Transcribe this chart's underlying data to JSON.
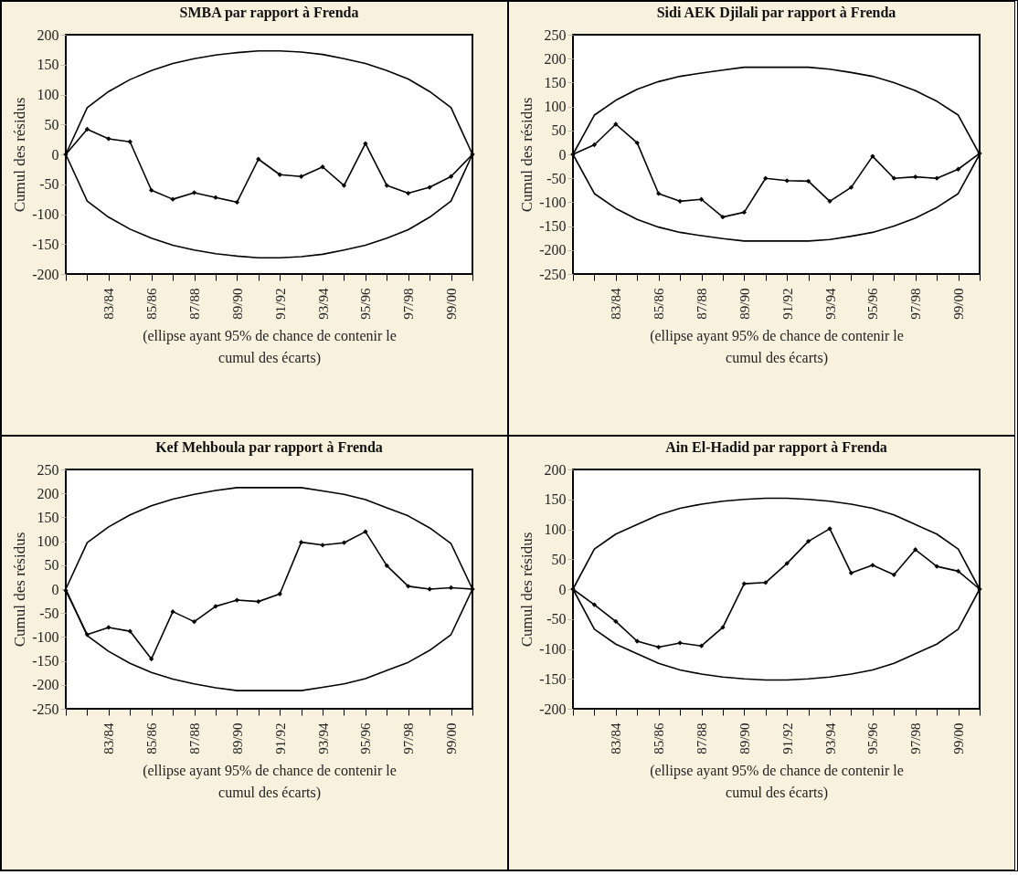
{
  "chart_data": [
    {
      "type": "line",
      "title": "SMBA par rapport à Frenda",
      "ylabel": "Cumul des résidus",
      "xlabel": "(ellipse ayant 95% de chance de contenir le cumul des écarts)",
      "categories": [
        null,
        null,
        "83/84",
        null,
        "85/86",
        null,
        "87/88",
        null,
        "89/90",
        null,
        "91/92",
        null,
        "93/94",
        null,
        "95/96",
        null,
        "97/98",
        null,
        "99/00",
        null
      ],
      "series": [
        {
          "color": "#000000",
          "marker": "diamond",
          "values": [
            0,
            42,
            26,
            21,
            -60,
            -75,
            -64,
            -72,
            -80,
            -8,
            -34,
            -37,
            -21,
            -52,
            18,
            -52,
            -65,
            -55,
            -37,
            0
          ],
          "upper": [
            0,
            78,
            105,
            125,
            140,
            152,
            160,
            166,
            170,
            173,
            173,
            171,
            167,
            160,
            152,
            140,
            126,
            105,
            78,
            0
          ],
          "lower": [
            0,
            -78,
            -105,
            -125,
            -140,
            -152,
            -160,
            -166,
            -170,
            -173,
            -173,
            -171,
            -167,
            -160,
            -152,
            -140,
            -126,
            -105,
            -78,
            0
          ]
        }
      ],
      "ylim": [
        -200,
        200
      ],
      "yticks": [
        -200,
        -150,
        -100,
        -50,
        0,
        50,
        100,
        150,
        200
      ]
    },
    {
      "type": "line",
      "title": "Sidi AEK Djilali par rapport à Frenda",
      "ylabel": "Cumul des résidus",
      "xlabel": "(ellipse ayant 95% de chance de contenir le cumul des écarts)",
      "categories": [
        null,
        null,
        "83/84",
        null,
        "85/86",
        null,
        "87/88",
        null,
        "89/90",
        null,
        "91/92",
        null,
        "93/94",
        null,
        "95/96",
        null,
        "97/98",
        null,
        "99/00",
        null
      ],
      "series": [
        {
          "color": "#000000",
          "marker": "diamond",
          "values": [
            0,
            20,
            63,
            24,
            -82,
            -98,
            -94,
            -131,
            -121,
            -50,
            -55,
            -56,
            -98,
            -69,
            -4,
            -50,
            -47,
            -50,
            -31,
            2
          ],
          "upper": [
            0,
            82,
            113,
            136,
            152,
            163,
            170,
            176,
            182,
            182,
            182,
            182,
            178,
            171,
            163,
            150,
            133,
            111,
            82,
            0
          ],
          "lower": [
            0,
            -82,
            -113,
            -136,
            -152,
            -163,
            -170,
            -176,
            -181,
            -181,
            -181,
            -181,
            -178,
            -171,
            -163,
            -150,
            -133,
            -111,
            -82,
            0
          ]
        }
      ],
      "ylim": [
        -250,
        250
      ],
      "yticks": [
        -250,
        -200,
        -150,
        -100,
        -50,
        0,
        50,
        100,
        150,
        200,
        250
      ]
    },
    {
      "type": "line",
      "title": "Kef Mehboula par rapport à Frenda",
      "ylabel": "Cumul des résidus",
      "xlabel": "(ellipse ayant 95% de chance de contenir le cumul des écarts)",
      "categories": [
        null,
        null,
        "83/84",
        null,
        "85/86",
        null,
        "87/88",
        null,
        "89/90",
        null,
        "91/92",
        null,
        "93/94",
        null,
        "95/96",
        null,
        "97/98",
        null,
        "99/00",
        null
      ],
      "series": [
        {
          "color": "#000000",
          "marker": "diamond",
          "values": [
            -3,
            -95,
            -80,
            -88,
            -146,
            -47,
            -68,
            -36,
            -23,
            -26,
            -10,
            98,
            92,
            97,
            120,
            49,
            6,
            0,
            3,
            0
          ],
          "upper": [
            0,
            97,
            130,
            155,
            174,
            188,
            198,
            206,
            212,
            212,
            212,
            212,
            205,
            198,
            187,
            170,
            153,
            128,
            95,
            0
          ],
          "lower": [
            0,
            -97,
            -130,
            -155,
            -174,
            -188,
            -198,
            -206,
            -212,
            -212,
            -212,
            -212,
            -205,
            -198,
            -187,
            -170,
            -153,
            -128,
            -95,
            0
          ]
        }
      ],
      "ylim": [
        -250,
        250
      ],
      "yticks": [
        -250,
        -200,
        -150,
        -100,
        -50,
        0,
        50,
        100,
        150,
        200,
        250
      ]
    },
    {
      "type": "line",
      "title": "Ain El-Hadid par rapport à Frenda",
      "ylabel": "Cumul des résidus",
      "xlabel": "(ellipse ayant 95% de chance de contenir le cumul des écarts)",
      "categories": [
        null,
        null,
        "83/84",
        null,
        "85/86",
        null,
        "87/88",
        null,
        "89/90",
        null,
        "91/92",
        null,
        "93/94",
        null,
        "95/96",
        null,
        "97/98",
        null,
        "99/00",
        null
      ],
      "series": [
        {
          "color": "#000000",
          "marker": "diamond",
          "values": [
            0,
            -26,
            -54,
            -87,
            -97,
            -90,
            -95,
            -64,
            9,
            11,
            43,
            80,
            101,
            27,
            40,
            24,
            66,
            38,
            30,
            0
          ],
          "upper": [
            0,
            67,
            92,
            108,
            124,
            135,
            142,
            147,
            150,
            152,
            152,
            150,
            147,
            142,
            135,
            124,
            108,
            92,
            67,
            0
          ],
          "lower": [
            0,
            -67,
            -92,
            -108,
            -124,
            -135,
            -142,
            -147,
            -150,
            -152,
            -152,
            -150,
            -147,
            -142,
            -135,
            -124,
            -108,
            -92,
            -67,
            0
          ]
        }
      ],
      "ylim": [
        -200,
        200
      ],
      "yticks": [
        -200,
        -150,
        -100,
        -50,
        0,
        50,
        100,
        150,
        200
      ]
    }
  ]
}
